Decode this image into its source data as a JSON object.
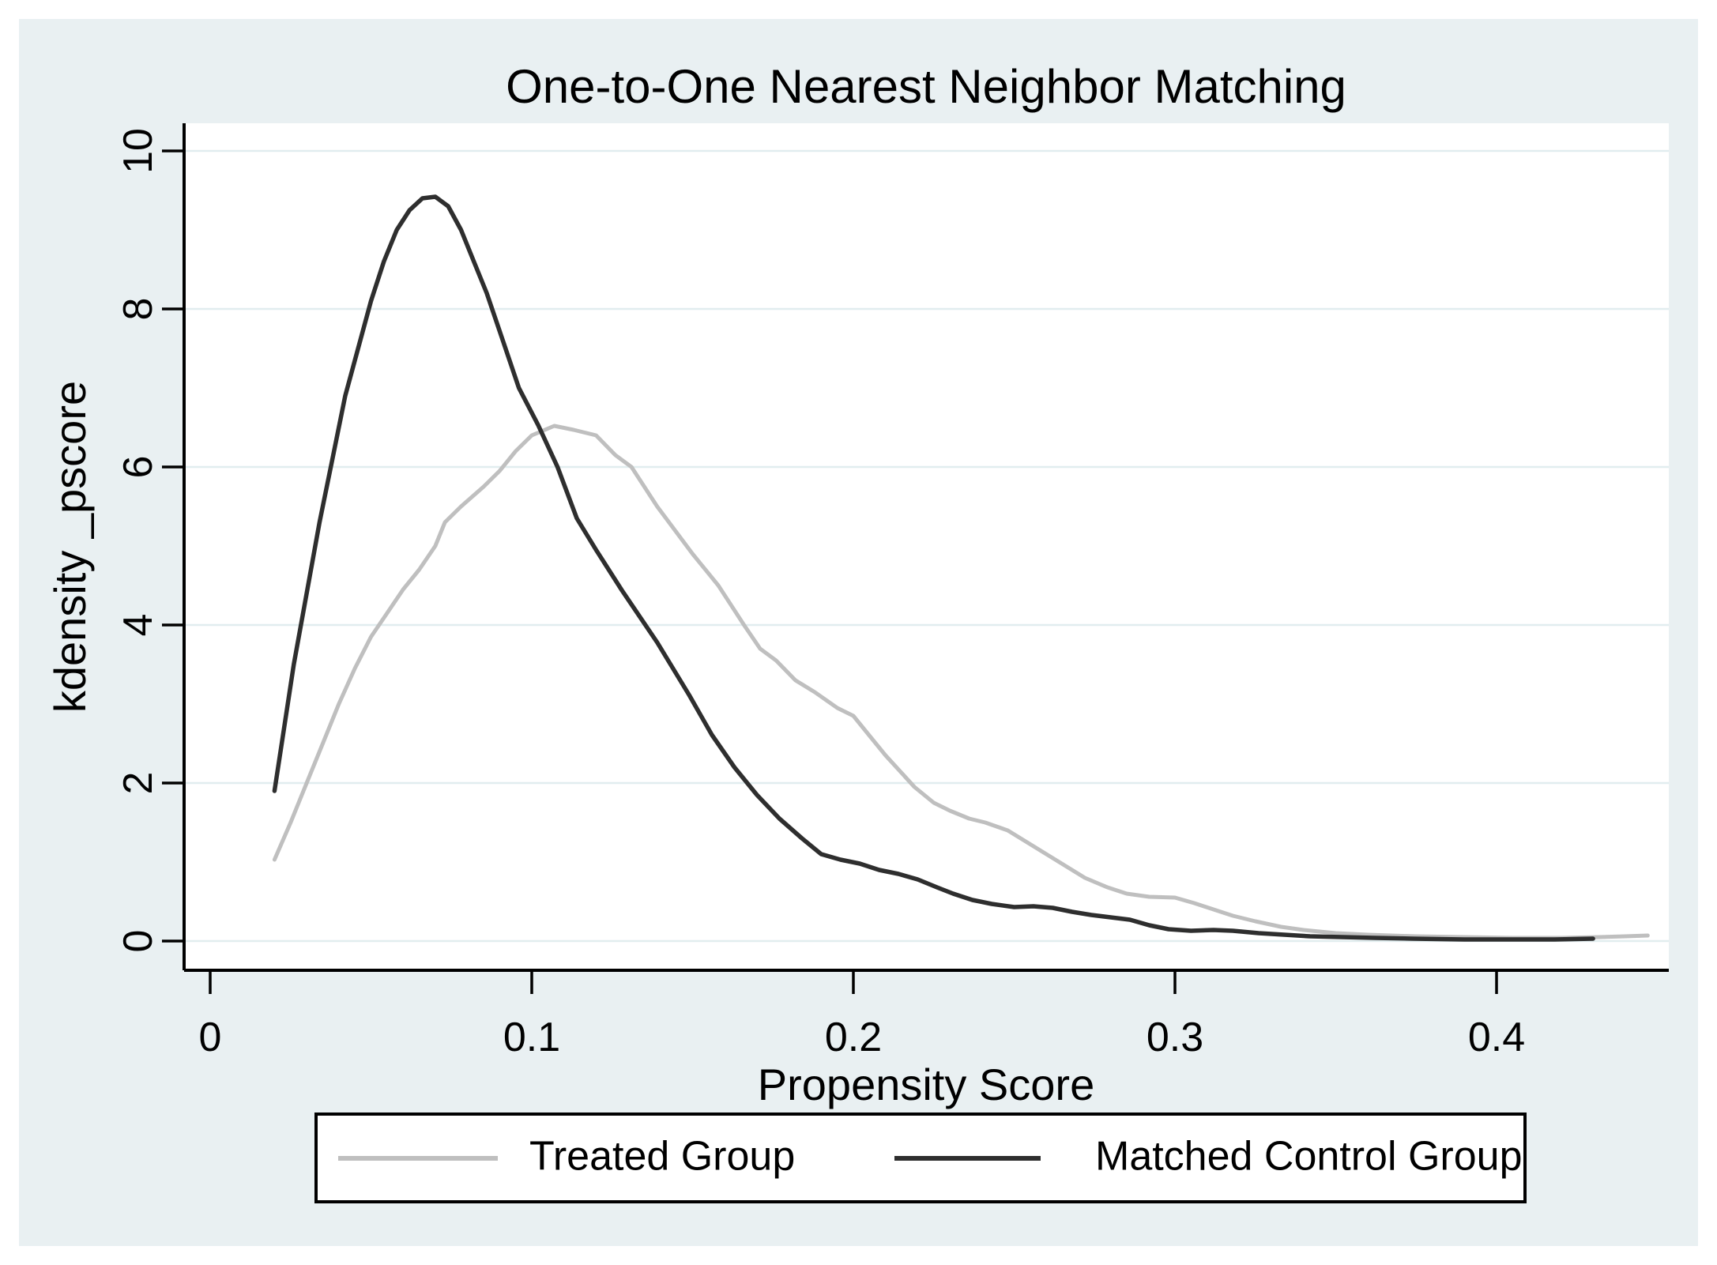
{
  "title": "One-to-One Nearest Neighbor Matching",
  "x_axis": {
    "label": "Propensity Score",
    "ticks": [
      {
        "value": 0,
        "label": "0"
      },
      {
        "value": 0.1,
        "label": "0.1"
      },
      {
        "value": 0.2,
        "label": "0.2"
      },
      {
        "value": 0.3,
        "label": "0.3"
      },
      {
        "value": 0.4,
        "label": "0.4"
      }
    ]
  },
  "y_axis": {
    "label": "kdensity _pscore",
    "ticks": [
      {
        "value": 0,
        "label": "0"
      },
      {
        "value": 2,
        "label": "2"
      },
      {
        "value": 4,
        "label": "4"
      },
      {
        "value": 6,
        "label": "6"
      },
      {
        "value": 8,
        "label": "8"
      },
      {
        "value": 10,
        "label": "10"
      }
    ]
  },
  "legend": {
    "entries": [
      {
        "label": "Treated Group",
        "color": "#bfbfbf"
      },
      {
        "label": "Matched Control Group",
        "color": "#2e2e2e"
      }
    ]
  },
  "colors": {
    "outer_background": "#ffffff",
    "canvas_background": "#e9f0f2",
    "plot_background": "#ffffff",
    "gridline": "#e1edef",
    "axis": "#000000",
    "treated_line": "#bfbfbf",
    "control_line": "#2e2e2e"
  },
  "chart_data": {
    "type": "line",
    "title": "One-to-One Nearest Neighbor Matching",
    "xlabel": "Propensity Score",
    "ylabel": "kdensity _pscore",
    "xlim": [
      -0.008,
      0.454
    ],
    "ylim": [
      0,
      10.35
    ],
    "x_ticks": [
      0,
      0.1,
      0.2,
      0.3,
      0.4
    ],
    "y_ticks": [
      0,
      2,
      4,
      6,
      8,
      10
    ],
    "grid": "horizontal",
    "legend_position": "bottom",
    "series": [
      {
        "name": "Treated Group",
        "color": "#bfbfbf",
        "points": [
          [
            0.02,
            1.03
          ],
          [
            0.025,
            1.5
          ],
          [
            0.03,
            2.0
          ],
          [
            0.035,
            2.5
          ],
          [
            0.04,
            3.0
          ],
          [
            0.045,
            3.45
          ],
          [
            0.05,
            3.85
          ],
          [
            0.055,
            4.15
          ],
          [
            0.06,
            4.45
          ],
          [
            0.065,
            4.7
          ],
          [
            0.07,
            5.0
          ],
          [
            0.073,
            5.3
          ],
          [
            0.078,
            5.5
          ],
          [
            0.085,
            5.75
          ],
          [
            0.09,
            5.95
          ],
          [
            0.095,
            6.2
          ],
          [
            0.1,
            6.4
          ],
          [
            0.107,
            6.52
          ],
          [
            0.113,
            6.47
          ],
          [
            0.12,
            6.4
          ],
          [
            0.126,
            6.15
          ],
          [
            0.131,
            6.0
          ],
          [
            0.139,
            5.5
          ],
          [
            0.15,
            4.9
          ],
          [
            0.158,
            4.5
          ],
          [
            0.166,
            4.0
          ],
          [
            0.171,
            3.7
          ],
          [
            0.176,
            3.55
          ],
          [
            0.182,
            3.3
          ],
          [
            0.188,
            3.15
          ],
          [
            0.195,
            2.95
          ],
          [
            0.2,
            2.85
          ],
          [
            0.205,
            2.6
          ],
          [
            0.21,
            2.35
          ],
          [
            0.219,
            1.95
          ],
          [
            0.225,
            1.75
          ],
          [
            0.23,
            1.65
          ],
          [
            0.236,
            1.55
          ],
          [
            0.241,
            1.5
          ],
          [
            0.248,
            1.4
          ],
          [
            0.254,
            1.25
          ],
          [
            0.26,
            1.1
          ],
          [
            0.266,
            0.95
          ],
          [
            0.272,
            0.8
          ],
          [
            0.279,
            0.68
          ],
          [
            0.285,
            0.6
          ],
          [
            0.292,
            0.56
          ],
          [
            0.3,
            0.55
          ],
          [
            0.306,
            0.48
          ],
          [
            0.312,
            0.4
          ],
          [
            0.318,
            0.32
          ],
          [
            0.325,
            0.25
          ],
          [
            0.333,
            0.18
          ],
          [
            0.34,
            0.14
          ],
          [
            0.35,
            0.1
          ],
          [
            0.36,
            0.08
          ],
          [
            0.375,
            0.06
          ],
          [
            0.39,
            0.05
          ],
          [
            0.405,
            0.04
          ],
          [
            0.42,
            0.04
          ],
          [
            0.432,
            0.05
          ],
          [
            0.44,
            0.06
          ],
          [
            0.447,
            0.07
          ]
        ]
      },
      {
        "name": "Matched Control Group",
        "color": "#2e2e2e",
        "points": [
          [
            0.02,
            1.9
          ],
          [
            0.023,
            2.7
          ],
          [
            0.026,
            3.5
          ],
          [
            0.03,
            4.4
          ],
          [
            0.034,
            5.3
          ],
          [
            0.038,
            6.1
          ],
          [
            0.042,
            6.9
          ],
          [
            0.046,
            7.5
          ],
          [
            0.05,
            8.1
          ],
          [
            0.054,
            8.6
          ],
          [
            0.058,
            9.0
          ],
          [
            0.062,
            9.25
          ],
          [
            0.066,
            9.4
          ],
          [
            0.07,
            9.42
          ],
          [
            0.074,
            9.3
          ],
          [
            0.078,
            9.0
          ],
          [
            0.082,
            8.6
          ],
          [
            0.086,
            8.2
          ],
          [
            0.091,
            7.6
          ],
          [
            0.096,
            7.0
          ],
          [
            0.102,
            6.53
          ],
          [
            0.108,
            6.0
          ],
          [
            0.114,
            5.35
          ],
          [
            0.12,
            4.95
          ],
          [
            0.128,
            4.44
          ],
          [
            0.139,
            3.78
          ],
          [
            0.149,
            3.11
          ],
          [
            0.156,
            2.61
          ],
          [
            0.163,
            2.2
          ],
          [
            0.17,
            1.85
          ],
          [
            0.177,
            1.55
          ],
          [
            0.184,
            1.3
          ],
          [
            0.19,
            1.1
          ],
          [
            0.196,
            1.03
          ],
          [
            0.202,
            0.98
          ],
          [
            0.208,
            0.9
          ],
          [
            0.214,
            0.85
          ],
          [
            0.22,
            0.78
          ],
          [
            0.226,
            0.68
          ],
          [
            0.231,
            0.6
          ],
          [
            0.237,
            0.52
          ],
          [
            0.243,
            0.47
          ],
          [
            0.25,
            0.43
          ],
          [
            0.256,
            0.44
          ],
          [
            0.262,
            0.42
          ],
          [
            0.268,
            0.37
          ],
          [
            0.274,
            0.33
          ],
          [
            0.28,
            0.3
          ],
          [
            0.286,
            0.27
          ],
          [
            0.292,
            0.2
          ],
          [
            0.298,
            0.15
          ],
          [
            0.305,
            0.13
          ],
          [
            0.312,
            0.14
          ],
          [
            0.318,
            0.13
          ],
          [
            0.326,
            0.1
          ],
          [
            0.334,
            0.08
          ],
          [
            0.342,
            0.06
          ],
          [
            0.352,
            0.05
          ],
          [
            0.362,
            0.04
          ],
          [
            0.374,
            0.03
          ],
          [
            0.39,
            0.02
          ],
          [
            0.405,
            0.02
          ],
          [
            0.418,
            0.02
          ],
          [
            0.43,
            0.03
          ]
        ]
      }
    ]
  }
}
